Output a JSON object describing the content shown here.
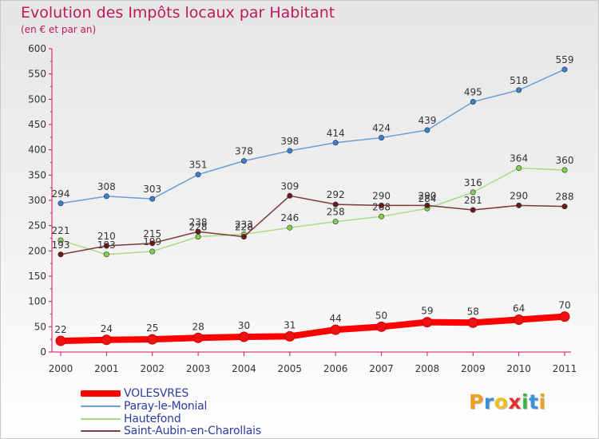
{
  "header": {
    "title": "Evolution des Impôts locaux par Habitant",
    "subtitle": "(en € et par an)"
  },
  "logo": {
    "letters": [
      "P",
      "r",
      "o",
      "x",
      "i",
      "t",
      "i"
    ],
    "colors": [
      "#f0a020",
      "#3a8fd8",
      "#f0c020",
      "#e03030",
      "#40b040",
      "#3a8fd8",
      "#f0a020"
    ]
  },
  "chart_data": {
    "type": "line",
    "x": [
      "2000",
      "2001",
      "2002",
      "2003",
      "2004",
      "2005",
      "2006",
      "2007",
      "2008",
      "2009",
      "2010",
      "2011"
    ],
    "ylim": [
      0,
      600
    ],
    "yticks": [
      0,
      50,
      100,
      150,
      200,
      250,
      300,
      350,
      400,
      450,
      500,
      550,
      600
    ],
    "grid": false,
    "legend": "bottom-left",
    "series": [
      {
        "name": "Paray-le-Monial",
        "color": "#6a9fd4",
        "point_color": "#3a7fd0",
        "values": [
          294,
          308,
          303,
          351,
          378,
          398,
          414,
          424,
          439,
          495,
          518,
          559
        ]
      },
      {
        "name": "Hautefond",
        "color": "#a8dc84",
        "point_color": "#82d050",
        "values": [
          221,
          193,
          199,
          228,
          233,
          246,
          258,
          268,
          284,
          316,
          364,
          360
        ]
      },
      {
        "name": "Saint-Aubin-en-Charollais",
        "color": "#7b3a3a",
        "point_color": "#6b1a1a",
        "values": [
          193,
          210,
          215,
          238,
          228,
          309,
          292,
          290,
          290,
          281,
          290,
          288
        ]
      },
      {
        "name": "VOLESVRES",
        "color": "#ff0000",
        "point_color": "#ee1111",
        "values": [
          22,
          24,
          25,
          28,
          30,
          31,
          44,
          50,
          59,
          58,
          64,
          70
        ]
      }
    ]
  }
}
